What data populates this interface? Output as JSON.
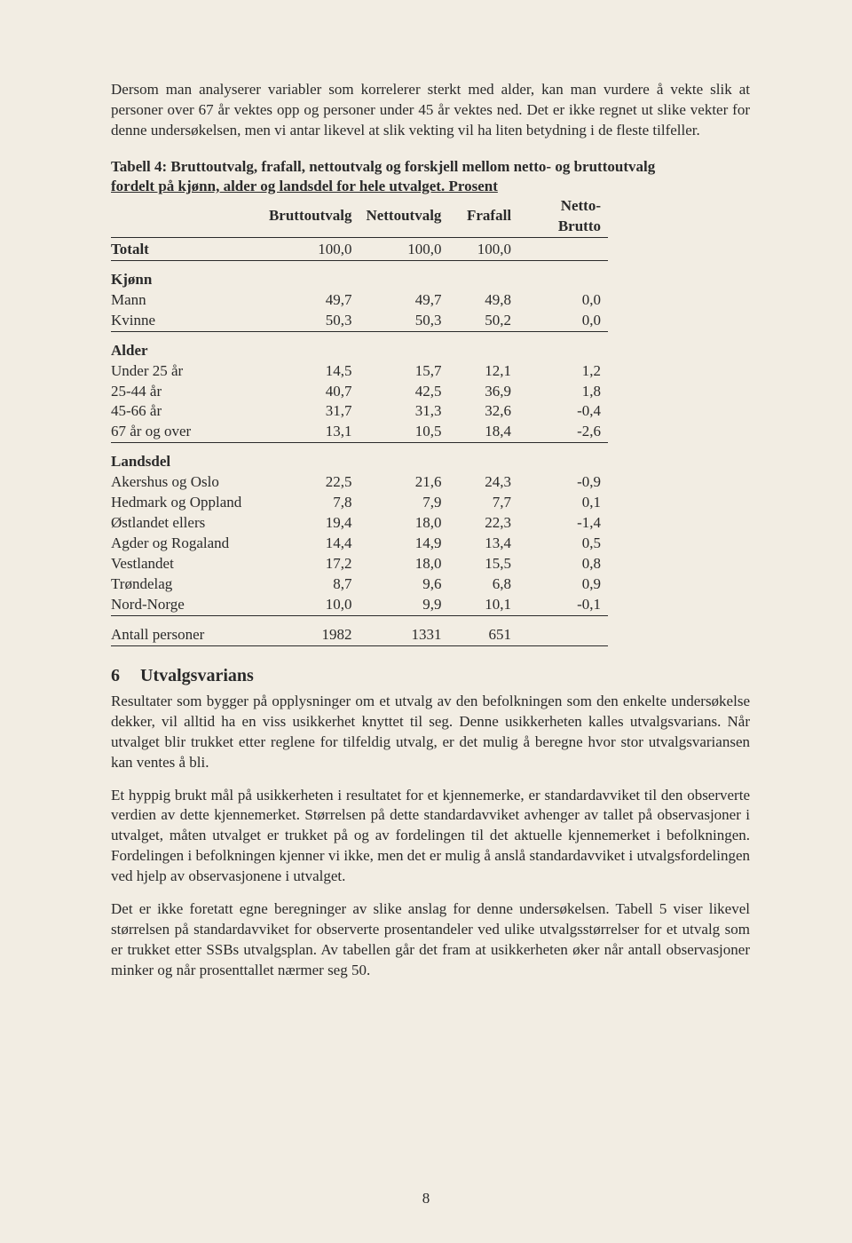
{
  "paragraphs": {
    "intro": "Dersom man analyserer variabler som korrelerer sterkt med alder, kan man vurdere å vekte slik at personer over 67 år vektes opp og personer under 45 år vektes ned. Det er ikke regnet ut slike vekter for denne undersøkelsen, men vi antar likevel at slik vekting vil ha liten betydning i de fleste tilfeller.",
    "p1": "Resultater som bygger på opplysninger om et utvalg av den befolkningen som den enkelte undersøkelse dekker, vil alltid ha en viss usikkerhet knyttet til seg. Denne usikkerheten kalles utvalgsvarians. Når utvalget blir trukket etter reglene for tilfeldig utvalg, er det mulig å beregne hvor stor utvalgsvariansen kan ventes å bli.",
    "p2": "Et hyppig brukt mål på usikkerheten i resultatet for et kjennemerke, er standardavviket til den observerte verdien av dette kjennemerket. Størrelsen på dette standardavviket avhenger av tallet på observasjoner i utvalget, måten utvalget er trukket på og av fordelingen til det aktuelle kjennemerket i befolkningen. Fordelingen i befolkningen kjenner vi ikke, men det er mulig å anslå standardavviket i utvalgsfordelingen ved hjelp av observasjonene i utvalget.",
    "p3": "Det er ikke foretatt egne beregninger av slike anslag for denne undersøkelsen. Tabell 5 viser likevel størrelsen på standardavviket for observerte prosentandeler ved ulike utvalgsstørrelser for et utvalg som er trukket etter SSBs utvalgsplan. Av tabellen går det fram at usikkerheten øker når antall observasjoner minker og når prosenttallet nærmer seg 50."
  },
  "table": {
    "caption_bold": "Tabell 4: Bruttoutvalg, frafall, nettoutvalg og forskjell mellom netto- og bruttoutvalg",
    "caption_underline": "fordelt på kjønn, alder og landsdel for hele utvalget. Prosent",
    "headers": [
      "",
      "Bruttoutvalg",
      "Nettoutvalg",
      "Frafall",
      "Netto-Brutto"
    ],
    "totalt": {
      "label": "Totalt",
      "cells": [
        "100,0",
        "100,0",
        "100,0",
        ""
      ]
    },
    "groups": [
      {
        "title": "Kjønn",
        "rows": [
          {
            "label": "Mann",
            "cells": [
              "49,7",
              "49,7",
              "49,8",
              "0,0"
            ]
          },
          {
            "label": "Kvinne",
            "cells": [
              "50,3",
              "50,3",
              "50,2",
              "0,0"
            ]
          }
        ]
      },
      {
        "title": "Alder",
        "rows": [
          {
            "label": "Under 25 år",
            "cells": [
              "14,5",
              "15,7",
              "12,1",
              "1,2"
            ]
          },
          {
            "label": "25-44 år",
            "cells": [
              "40,7",
              "42,5",
              "36,9",
              "1,8"
            ]
          },
          {
            "label": "45-66 år",
            "cells": [
              "31,7",
              "31,3",
              "32,6",
              "-0,4"
            ]
          },
          {
            "label": "67 år og over",
            "cells": [
              "13,1",
              "10,5",
              "18,4",
              "-2,6"
            ]
          }
        ]
      },
      {
        "title": "Landsdel",
        "rows": [
          {
            "label": "Akershus og Oslo",
            "cells": [
              "22,5",
              "21,6",
              "24,3",
              "-0,9"
            ]
          },
          {
            "label": "Hedmark og Oppland",
            "cells": [
              "7,8",
              "7,9",
              "7,7",
              "0,1"
            ]
          },
          {
            "label": "Østlandet ellers",
            "cells": [
              "19,4",
              "18,0",
              "22,3",
              "-1,4"
            ]
          },
          {
            "label": "Agder og Rogaland",
            "cells": [
              "14,4",
              "14,9",
              "13,4",
              "0,5"
            ]
          },
          {
            "label": "Vestlandet",
            "cells": [
              "17,2",
              "18,0",
              "15,5",
              "0,8"
            ]
          },
          {
            "label": "Trøndelag",
            "cells": [
              "8,7",
              "9,6",
              "6,8",
              "0,9"
            ]
          },
          {
            "label": "Nord-Norge",
            "cells": [
              "10,0",
              "9,9",
              "10,1",
              "-0,1"
            ]
          }
        ]
      }
    ],
    "footer": {
      "label": "Antall personer",
      "cells": [
        "1982",
        "1331",
        "651",
        ""
      ]
    }
  },
  "section": {
    "number": "6",
    "title": "Utvalgsvarians"
  },
  "page_number": "8",
  "colors": {
    "background": "#f2ede3",
    "text": "#2a2a2a",
    "rule": "#2a2a2a"
  },
  "typography": {
    "body_font": "Times New Roman",
    "body_size_pt": 12,
    "heading_size_pt": 14
  }
}
